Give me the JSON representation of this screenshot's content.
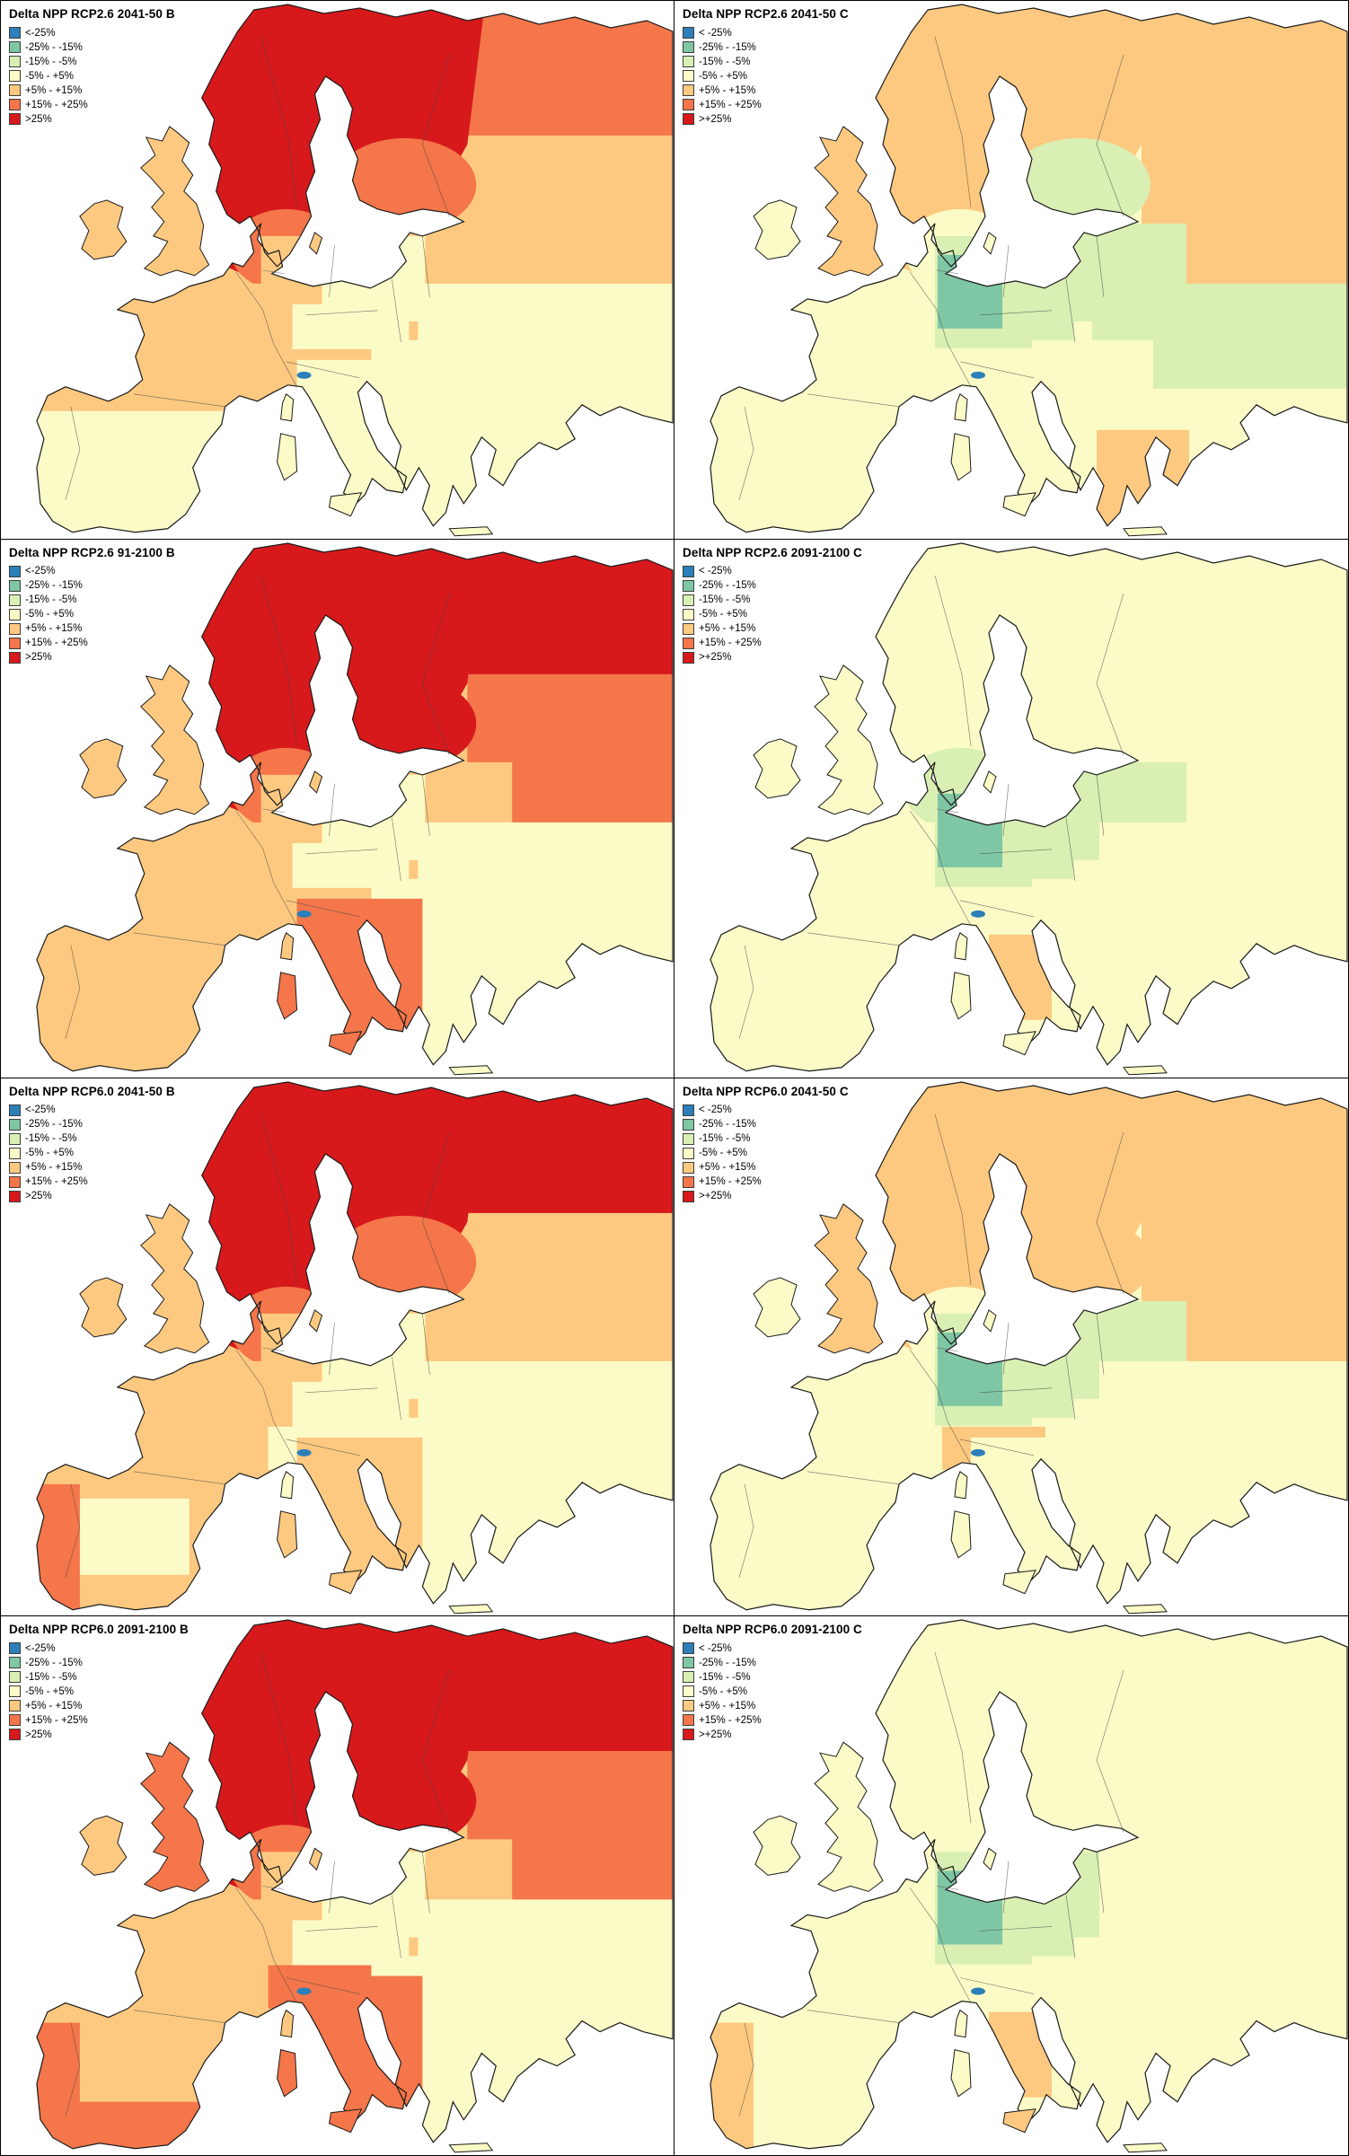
{
  "figure": {
    "rows": 4,
    "cols": 2,
    "description": "Delta NPP map grid for Europe"
  },
  "map_style": {
    "sea_color": "#ffffff",
    "coastline_color": "#1a1a1a",
    "country_border_color": "#444444"
  },
  "legend_classes": [
    {
      "key": "ltm25",
      "color": "#2c7fb8"
    },
    {
      "key": "m25_15",
      "color": "#7fc6a4"
    },
    {
      "key": "m15_5",
      "color": "#d9efb3"
    },
    {
      "key": "m5p5",
      "color": "#fbfbc7"
    },
    {
      "key": "p5_15",
      "color": "#fdc980"
    },
    {
      "key": "p15_25",
      "color": "#f4764a"
    },
    {
      "key": "gt25",
      "color": "#d7191c"
    }
  ],
  "panels": [
    {
      "title": "Delta NPP RCP2.6 2041-50 B",
      "legend_labels": [
        "<-25%",
        "-25% - -15%",
        "-15% - -5%",
        "-5% - +5%",
        "+5% - +15%",
        "+15% - +25%",
        ">25%"
      ],
      "fills": {
        "base": "p5_15",
        "arctic_ne": "p15_25",
        "russia_e": "p5_15",
        "scand": "gt25",
        "finland_se": "p15_25",
        "scand_south": "p15_25",
        "baltics": "p5_15",
        "east_mid": "m5p5",
        "southeast": "m5p5",
        "iberia": "m5p5",
        "iberia_n": "p5_15",
        "france": "p5_15",
        "central": "p5_15",
        "poland": "m5p5",
        "central_pale": "m5p5",
        "balkans": "m5p5",
        "greece": "m5p5",
        "italy_n": "p5_15",
        "italy": "m5p5",
        "alps_spot": "ltm25",
        "adriatic_spot": "m25_15",
        "uk": "p5_15",
        "ireland": "p5_15",
        "corsica": "m5p5",
        "sardinia": "m5p5",
        "sicily": "m5p5",
        "crete": "m5p5",
        "gotland": "p5_15"
      }
    },
    {
      "title": "Delta NPP RCP2.6 2041-50 C",
      "legend_labels": [
        "< -25%",
        "-25% - -15%",
        "-15% - -5%",
        "-5% - +5%",
        "+5% - +15%",
        "+15% - +25%",
        ">+25%"
      ],
      "fills": {
        "base": "m5p5",
        "arctic_ne": "p5_15",
        "russia_e": "p5_15",
        "scand": "p5_15",
        "finland_se": "m15_5",
        "scand_south": "m5p5",
        "baltics": "m15_5",
        "east_mid": "m15_5",
        "southeast": "m5p5",
        "iberia": "m5p5",
        "france": "m5p5",
        "central": "m15_5",
        "poland": "m15_5",
        "germany_core": "m25_15",
        "balkans": "m5p5",
        "greece": "p5_15",
        "italy_n": "m5p5",
        "italy": "m5p5",
        "alps_spot": "ltm25",
        "adriatic_spot": "m25_15",
        "uk": "p5_15",
        "ireland": "m5p5",
        "corsica": "m5p5",
        "sardinia": "m5p5",
        "sicily": "m5p5",
        "crete": "m5p5",
        "gotland": "m5p5"
      }
    },
    {
      "title": "Delta NPP RCP2.6 91-2100 B",
      "legend_labels": [
        "<-25%",
        "-25% - -15%",
        "-15% - -5%",
        "-5% - +5%",
        "+5% - +15%",
        "+15% - +25%",
        ">25%"
      ],
      "fills": {
        "base": "p5_15",
        "arctic_ne": "gt25",
        "russia_e": "p15_25",
        "scand": "gt25",
        "finland_se": "gt25",
        "scand_south": "p15_25",
        "baltics": "p5_15",
        "east_mid": "m5p5",
        "southeast": "m5p5",
        "iberia": "p5_15",
        "portugal": "p5_15",
        "france": "p5_15",
        "central": "p5_15",
        "poland": "m5p5",
        "central_pale": "m5p5",
        "balkans": "m5p5",
        "greece": "m5p5",
        "italy_n": "p5_15",
        "italy": "p15_25",
        "alps_spot": "ltm25",
        "adriatic_spot": "m25_15",
        "uk": "p5_15",
        "ireland": "p5_15",
        "corsica": "p5_15",
        "sardinia": "p15_25",
        "sicily": "p15_25",
        "crete": "m5p5",
        "gotland": "p5_15"
      }
    },
    {
      "title": "Delta NPP RCP2.6 2091-2100 C",
      "legend_labels": [
        "< -25%",
        "-25% - -15%",
        "-15% - -5%",
        "-5% - +5%",
        "+5% - +15%",
        "+15% - +25%",
        ">+25%"
      ],
      "fills": {
        "base": "m5p5",
        "scand": "m5p5",
        "finland_se": "m5p5",
        "scand_south": "m15_5",
        "baltics": "m15_5",
        "east_mid": "m5p5",
        "southeast": "m5p5",
        "iberia": "m5p5",
        "portugal": "m5p5",
        "france": "m5p5",
        "central": "m15_5",
        "poland": "m15_5",
        "germany_core": "m25_15",
        "balkans": "m5p5",
        "greece": "m5p5",
        "italy_n": "m5p5",
        "italy": "m5p5",
        "italy_c": "p5_15",
        "alps_spot": "ltm25",
        "adriatic_spot": "m25_15",
        "uk": "m5p5",
        "ireland": "m5p5",
        "corsica": "m5p5",
        "sardinia": "m5p5",
        "sicily": "m5p5",
        "crete": "m5p5",
        "gotland": "m5p5"
      }
    },
    {
      "title": "Delta NPP RCP6.0 2041-50 B",
      "legend_labels": [
        "<-25%",
        "-25% - -15%",
        "-15% - -5%",
        "-5% - +5%",
        "+5% - +15%",
        "+15% - +25%",
        ">25%"
      ],
      "fills": {
        "base": "p5_15",
        "arctic_ne": "gt25",
        "russia_e": "p5_15",
        "scand": "gt25",
        "finland_se": "p15_25",
        "scand_south": "p15_25",
        "baltics": "p5_15",
        "east_mid": "m5p5",
        "southeast": "m5p5",
        "iberia": "p5_15",
        "iberia_c": "m5p5",
        "portugal": "p15_25",
        "france": "p5_15",
        "central": "p5_15",
        "poland": "m5p5",
        "central_pale": "m5p5",
        "balkans": "m5p5",
        "greece": "m5p5",
        "italy_n": "m5p5",
        "italy": "p5_15",
        "alps_spot": "ltm25",
        "adriatic_spot": "m25_15",
        "uk": "p5_15",
        "ireland": "p5_15",
        "corsica": "m5p5",
        "sardinia": "p5_15",
        "sicily": "p5_15",
        "crete": "m5p5",
        "gotland": "p5_15"
      }
    },
    {
      "title": "Delta NPP RCP6.0 2041-50 C",
      "legend_labels": [
        "< -25%",
        "-25% - -15%",
        "-15% - -5%",
        "-5% - +5%",
        "+5% - +15%",
        "+15% - +25%",
        ">+25%"
      ],
      "fills": {
        "base": "m5p5",
        "arctic_ne": "p5_15",
        "russia_e": "p5_15",
        "scand": "p5_15",
        "finland_se": "p5_15",
        "scand_south": "m5p5",
        "baltics": "m15_5",
        "east_mid": "m5p5",
        "southeast": "m5p5",
        "iberia": "m5p5",
        "france": "m5p5",
        "central": "m15_5",
        "poland": "m15_5",
        "germany_core": "m25_15",
        "balkans": "m5p5",
        "greece": "m5p5",
        "italy_n": "p5_15",
        "italy": "m5p5",
        "alps_spot": "ltm25",
        "adriatic_spot": "m25_15",
        "uk": "p5_15",
        "ireland": "m5p5",
        "corsica": "m5p5",
        "sardinia": "m5p5",
        "sicily": "m5p5",
        "crete": "m5p5",
        "gotland": "m5p5"
      }
    },
    {
      "title": "Delta NPP RCP6.0 2091-2100 B",
      "legend_labels": [
        "<-25%",
        "-25% - -15%",
        "-15% - -5%",
        "-5% - +5%",
        "+5% - +15%",
        "+15% - +25%",
        ">25%"
      ],
      "fills": {
        "base": "p5_15",
        "arctic_ne": "gt25",
        "russia_e": "p15_25",
        "scand": "gt25",
        "finland_se": "gt25",
        "scand_south": "p15_25",
        "baltics": "p5_15",
        "east_mid": "m5p5",
        "southeast": "m5p5",
        "iberia": "p5_15",
        "portugal": "p15_25",
        "andalusia": "p15_25",
        "france": "p5_15",
        "central": "p5_15",
        "poland": "m5p5",
        "central_pale": "m5p5",
        "balkans": "m5p5",
        "greece": "m5p5",
        "italy_n": "p15_25",
        "italy": "p15_25",
        "alps_spot": "ltm25",
        "adriatic_spot": "m25_15",
        "uk": "p15_25",
        "ireland": "p5_15",
        "corsica": "p5_15",
        "sardinia": "p15_25",
        "sicily": "p15_25",
        "crete": "m5p5",
        "gotland": "p5_15"
      }
    },
    {
      "title": "Delta NPP RCP6.0 2091-2100 C",
      "legend_labels": [
        "< -25%",
        "-25% - -15%",
        "-15% - -5%",
        "-5% - +5%",
        "+5% - +15%",
        "+15% - +25%",
        ">+25%"
      ],
      "fills": {
        "base": "m5p5",
        "scand": "m5p5",
        "central": "m15_5",
        "poland": "m15_5",
        "germany_core": "m25_15",
        "baltics": "m5p5",
        "east_mid": "m5p5",
        "southeast": "m5p5",
        "iberia": "m5p5",
        "portugal": "p5_15",
        "france": "m5p5",
        "balkans": "m5p5",
        "greece": "m5p5",
        "italy_n": "m5p5",
        "italy": "m5p5",
        "italy_c": "p5_15",
        "alps_spot": "ltm25",
        "adriatic_spot": "m25_15",
        "uk": "m5p5",
        "ireland": "m5p5",
        "corsica": "m5p5",
        "sardinia": "m5p5",
        "sicily": "p5_15",
        "crete": "m5p5",
        "gotland": "m5p5"
      }
    }
  ]
}
